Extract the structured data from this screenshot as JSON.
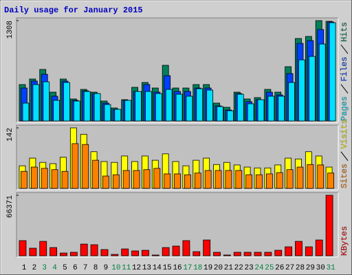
{
  "chart_data": [
    {
      "type": "bar",
      "title": "Daily usage for January 2015",
      "ylim": [
        0,
        1308
      ],
      "yticks": [
        1308
      ],
      "series": [
        {
          "name": "Hits",
          "color": "#00805c",
          "values": [
            475,
            547,
            672,
            376,
            547,
            287,
            412,
            376,
            260,
            170,
            278,
            439,
            502,
            430,
            726,
            430,
            430,
            475,
            475,
            233,
            179,
            376,
            287,
            305,
            412,
            376,
            708,
            1075,
            1102,
            1308,
            1299
          ]
        },
        {
          "name": "Files",
          "color": "#0040ff",
          "values": [
            430,
            520,
            609,
            323,
            520,
            269,
            394,
            358,
            233,
            152,
            269,
            385,
            475,
            376,
            591,
            385,
            385,
            430,
            430,
            197,
            143,
            358,
            251,
            278,
            376,
            340,
            618,
            1012,
            1048,
            1192,
            1290
          ]
        },
        {
          "name": "Pages",
          "color": "#00e0ff",
          "values": [
            233,
            475,
            511,
            269,
            502,
            260,
            385,
            358,
            215,
            152,
            269,
            385,
            385,
            358,
            412,
            349,
            323,
            421,
            403,
            188,
            134,
            349,
            224,
            278,
            323,
            323,
            502,
            797,
            842,
            1003,
            1281
          ]
        }
      ]
    },
    {
      "type": "bar",
      "ylim": [
        0,
        142
      ],
      "yticks": [
        142
      ],
      "series": [
        {
          "name": "Visits",
          "color": "#ffff00",
          "values": [
            53,
            71,
            61,
            58,
            73,
            142,
            127,
            86,
            63,
            61,
            76,
            63,
            76,
            66,
            81,
            63,
            53,
            66,
            71,
            56,
            61,
            55,
            50,
            48,
            48,
            55,
            71,
            69,
            86,
            76,
            50
          ]
        },
        {
          "name": "Sites",
          "color": "#ff8000",
          "values": [
            40,
            50,
            47,
            44,
            40,
            105,
            103,
            66,
            29,
            32,
            42,
            42,
            44,
            47,
            34,
            34,
            32,
            36,
            42,
            42,
            42,
            42,
            32,
            32,
            34,
            37,
            44,
            50,
            56,
            55,
            36
          ]
        }
      ]
    },
    {
      "type": "bar",
      "ylim": [
        0,
        66371
      ],
      "yticks": [
        66371
      ],
      "categories": [
        "1",
        "2",
        "3",
        "4",
        "5",
        "6",
        "7",
        "8",
        "9",
        "10",
        "11",
        "12",
        "13",
        "14",
        "15",
        "16",
        "17",
        "18",
        "19",
        "20",
        "21",
        "22",
        "23",
        "24",
        "25",
        "26",
        "27",
        "28",
        "29",
        "30",
        "31"
      ],
      "category_colors": [
        "#000000",
        "#000000",
        "#008040",
        "#008040",
        "#000000",
        "#000000",
        "#000000",
        "#000000",
        "#000000",
        "#008040",
        "#008040",
        "#000000",
        "#000000",
        "#000000",
        "#000000",
        "#000000",
        "#008040",
        "#008040",
        "#000000",
        "#000000",
        "#000000",
        "#000000",
        "#000000",
        "#008040",
        "#008040",
        "#000000",
        "#000000",
        "#000000",
        "#000000",
        "#000000",
        "#008040"
      ],
      "series": [
        {
          "name": "KBytes",
          "color": "#ff0000",
          "values": [
            16600,
            8300,
            15800,
            9000,
            3000,
            3800,
            12800,
            12100,
            6800,
            1500,
            7500,
            5300,
            6000,
            800,
            9000,
            10600,
            16600,
            4500,
            17300,
            3800,
            800,
            3800,
            3800,
            3800,
            3800,
            6000,
            9800,
            15800,
            9800,
            17300,
            66371
          ]
        }
      ]
    }
  ]
}
